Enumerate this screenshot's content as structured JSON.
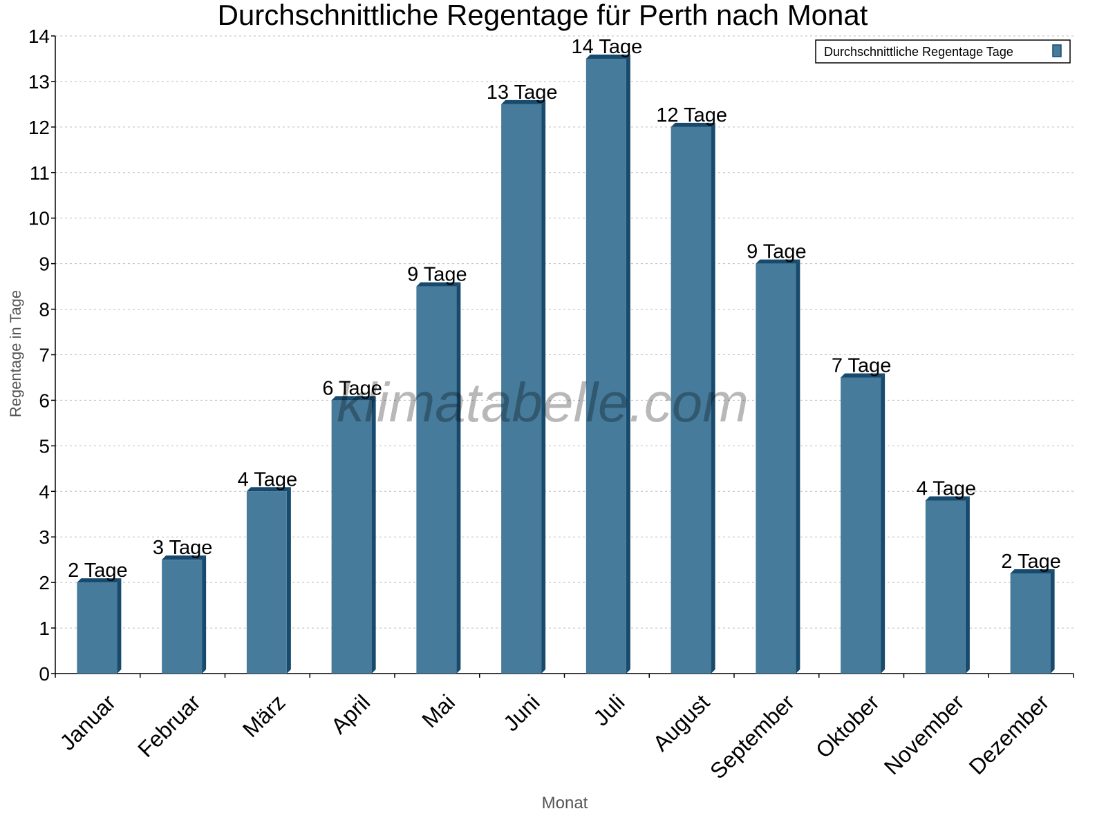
{
  "chart_data": {
    "type": "bar",
    "title": "Durchschnittliche Regentage für Perth nach Monat",
    "xlabel": "Monat",
    "ylabel": "Regentage in Tage",
    "ylim": [
      0,
      14
    ],
    "yticks": [
      0,
      1,
      2,
      3,
      4,
      5,
      6,
      7,
      8,
      9,
      10,
      11,
      12,
      13,
      14
    ],
    "grid": true,
    "legend_placement": "top-right",
    "categories": [
      "Januar",
      "Februar",
      "März",
      "April",
      "Mai",
      "Juni",
      "Juli",
      "August",
      "September",
      "Oktober",
      "November",
      "Dezember"
    ],
    "series": [
      {
        "name": "Durchschnittliche Regentage Tage",
        "values": [
          2.0,
          2.5,
          4.0,
          6.0,
          8.5,
          12.5,
          13.5,
          12.0,
          9.0,
          6.5,
          3.8,
          2.2
        ],
        "labels": [
          "2 Tage",
          "3 Tage",
          "4 Tage",
          "6 Tage",
          "9 Tage",
          "13 Tage",
          "14 Tage",
          "12 Tage",
          "9 Tage",
          "7 Tage",
          "4 Tage",
          "2 Tage"
        ],
        "color": "#467b9c",
        "shade_color": "#174a6c"
      }
    ],
    "watermark": "klimatabelle.com"
  }
}
